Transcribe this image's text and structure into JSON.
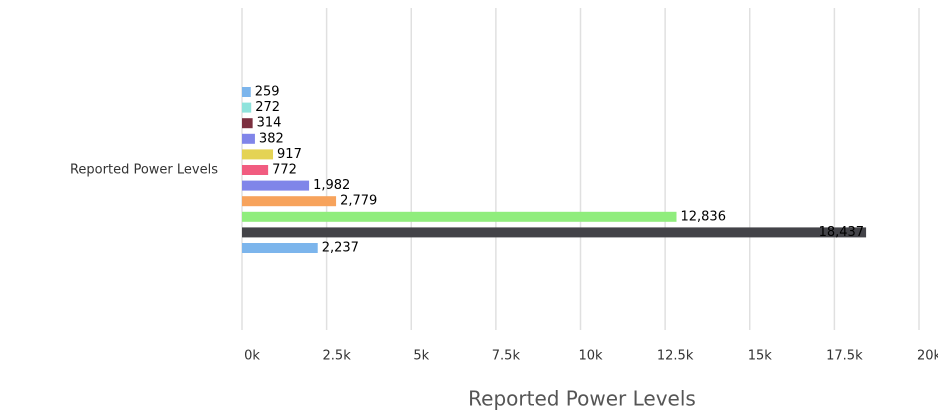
{
  "chart_data": {
    "type": "bar",
    "orientation": "horizontal",
    "categories": [
      "Reported Power Levels"
    ],
    "xlabel": "Reported Power Levels",
    "xlim": [
      0,
      20000
    ],
    "xticks": [
      {
        "value": 0,
        "label": "0k"
      },
      {
        "value": 2500,
        "label": "2.5k"
      },
      {
        "value": 5000,
        "label": "5k"
      },
      {
        "value": 7500,
        "label": "7.5k"
      },
      {
        "value": 10000,
        "label": "10k"
      },
      {
        "value": 12500,
        "label": "12.5k"
      },
      {
        "value": 15000,
        "label": "15k"
      },
      {
        "value": 17500,
        "label": "17.5k"
      },
      {
        "value": 20000,
        "label": "20k"
      }
    ],
    "grid": true,
    "series": [
      {
        "color": "#7cb5ec",
        "values": [
          259
        ],
        "value_labels": [
          "259"
        ]
      },
      {
        "color": "#8fe3dc",
        "values": [
          272
        ],
        "value_labels": [
          "272"
        ]
      },
      {
        "color": "#7b2f3f",
        "values": [
          314
        ],
        "value_labels": [
          "314"
        ]
      },
      {
        "color": "#8085e9",
        "values": [
          382
        ],
        "value_labels": [
          "382"
        ]
      },
      {
        "color": "#e4d354",
        "values": [
          917
        ],
        "value_labels": [
          "917"
        ]
      },
      {
        "color": "#f15c80",
        "values": [
          772
        ],
        "value_labels": [
          "772"
        ]
      },
      {
        "color": "#8085e9",
        "values": [
          1982
        ],
        "value_labels": [
          "1,982"
        ]
      },
      {
        "color": "#f7a35c",
        "values": [
          2779
        ],
        "value_labels": [
          "2,779"
        ]
      },
      {
        "color": "#90ed7d",
        "values": [
          12836
        ],
        "value_labels": [
          "12,836"
        ]
      },
      {
        "color": "#434348",
        "values": [
          18437
        ],
        "value_labels": [
          "18,437"
        ]
      },
      {
        "color": "#7cb5ec",
        "values": [
          2237
        ],
        "value_labels": [
          "2,237"
        ]
      }
    ]
  }
}
